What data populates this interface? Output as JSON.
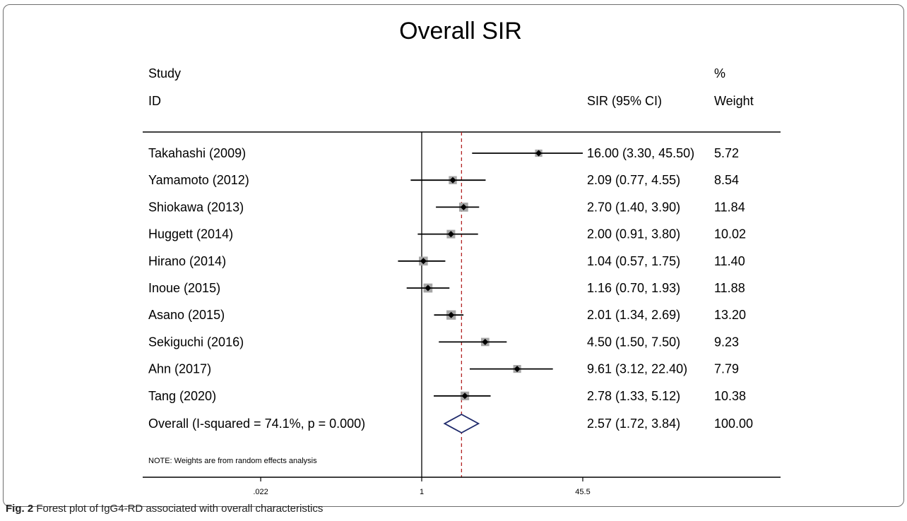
{
  "chart_data": {
    "type": "forest",
    "title": "Overall SIR",
    "headers": {
      "study_line1": "Study",
      "study_line2": "ID",
      "estimate": "SIR (95% CI)",
      "weight_line1": "%",
      "weight_line2": "Weight"
    },
    "studies": [
      {
        "label": "Takahashi (2009)",
        "sir": 16.0,
        "lo": 3.3,
        "hi": 45.5,
        "ci_text": "16.00 (3.30, 45.50)",
        "weight": "5.72"
      },
      {
        "label": "Yamamoto (2012)",
        "sir": 2.09,
        "lo": 0.77,
        "hi": 4.55,
        "ci_text": "2.09 (0.77, 4.55)",
        "weight": "8.54"
      },
      {
        "label": "Shiokawa (2013)",
        "sir": 2.7,
        "lo": 1.4,
        "hi": 3.9,
        "ci_text": "2.70 (1.40, 3.90)",
        "weight": "11.84"
      },
      {
        "label": "Huggett (2014)",
        "sir": 2.0,
        "lo": 0.91,
        "hi": 3.8,
        "ci_text": "2.00 (0.91, 3.80)",
        "weight": "10.02"
      },
      {
        "label": "Hirano (2014)",
        "sir": 1.04,
        "lo": 0.57,
        "hi": 1.75,
        "ci_text": "1.04 (0.57, 1.75)",
        "weight": "11.40"
      },
      {
        "label": "Inoue (2015)",
        "sir": 1.16,
        "lo": 0.7,
        "hi": 1.93,
        "ci_text": "1.16 (0.70, 1.93)",
        "weight": "11.88"
      },
      {
        "label": "Asano (2015)",
        "sir": 2.01,
        "lo": 1.34,
        "hi": 2.69,
        "ci_text": "2.01 (1.34, 2.69)",
        "weight": "13.20"
      },
      {
        "label": "Sekiguchi (2016)",
        "sir": 4.5,
        "lo": 1.5,
        "hi": 7.5,
        "ci_text": "4.50 (1.50, 7.50)",
        "weight": "9.23"
      },
      {
        "label": "Ahn (2017)",
        "sir": 9.61,
        "lo": 3.12,
        "hi": 22.4,
        "ci_text": "9.61 (3.12, 22.40)",
        "weight": "7.79"
      },
      {
        "label": "Tang (2020)",
        "sir": 2.78,
        "lo": 1.33,
        "hi": 5.12,
        "ci_text": "2.78 (1.33, 5.12)",
        "weight": "10.38"
      }
    ],
    "overall": {
      "label": "Overall  (I-squared = 74.1%, p = 0.000)",
      "sir": 2.57,
      "lo": 1.72,
      "hi": 3.84,
      "ci_text": "2.57 (1.72, 3.84)",
      "weight": "100.00"
    },
    "note": "NOTE: Weights are from random effects analysis",
    "x_scale": "log",
    "x_ticks": [
      {
        "value": 0.022,
        "label": ".022"
      },
      {
        "value": 1,
        "label": "1"
      },
      {
        "value": 45.5,
        "label": "45.5"
      }
    ],
    "reference_line": 1,
    "colors": {
      "diamond": "#1f2a6b",
      "pooled_line": "#b22222",
      "box": "#a6a6a6",
      "title": "#1f3b73"
    }
  },
  "caption": {
    "label": "Fig. 2",
    "text": "Forest plot of IgG4-RD associated with overall characteristics"
  }
}
